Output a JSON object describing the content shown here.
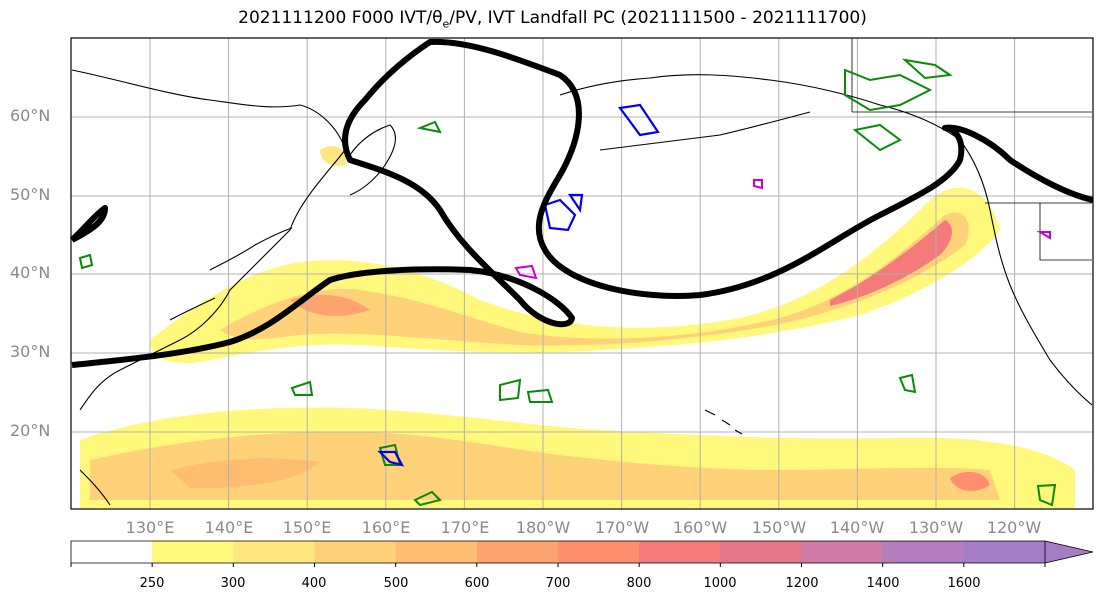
{
  "title": {
    "prefix": "2021111200 F000 IVT/",
    "theta": "θ",
    "theta_sub": "e",
    "suffix": "/PV, IVT Landfall PC (2021111500 - 2021111700)"
  },
  "map": {
    "lat_labels": [
      "60°N",
      "50°N",
      "40°N",
      "30°N",
      "20°N"
    ],
    "lon_labels": [
      "130°E",
      "140°E",
      "150°E",
      "160°E",
      "170°E",
      "180°W",
      "170°W",
      "160°W",
      "150°W",
      "140°W",
      "130°W",
      "120°W"
    ]
  },
  "colorbar": {
    "ticks": [
      "250",
      "300",
      "400",
      "500",
      "600",
      "700",
      "800",
      "1000",
      "1200",
      "1400",
      "1600"
    ],
    "colors": [
      "#ffffff",
      "#fff87a",
      "#ffe680",
      "#ffd27a",
      "#ffbd72",
      "#ffa46e",
      "#ff8e6e",
      "#f47a7c",
      "#e47888",
      "#cf7ba6",
      "#b37ec0",
      "#a67cc4"
    ]
  }
}
